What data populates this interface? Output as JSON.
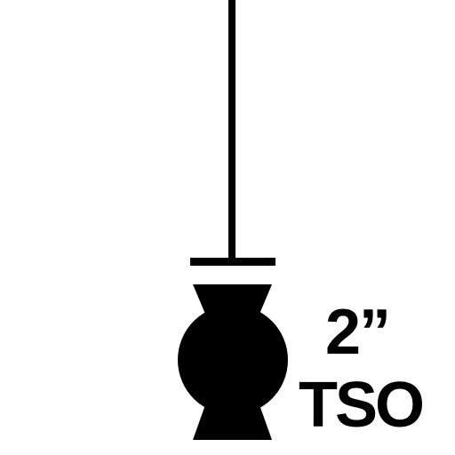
{
  "symbol": {
    "name": "tso-fitting",
    "color": "#000000"
  },
  "labels": {
    "size": "2”",
    "type": "TSO"
  }
}
